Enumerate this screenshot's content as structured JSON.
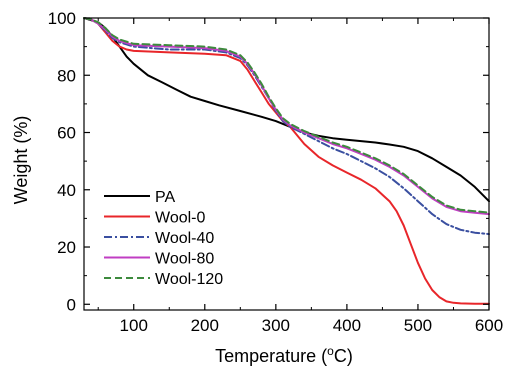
{
  "chart_data": {
    "type": "line",
    "title": "",
    "xlabel": "Temperature (",
    "xlabel_sup": "o",
    "xlabel_end": "C)",
    "ylabel": "Weight (%)",
    "xlim": [
      30,
      600
    ],
    "ylim": [
      -2,
      100
    ],
    "xticks": [
      100,
      200,
      300,
      400,
      500,
      600
    ],
    "yticks": [
      0,
      20,
      40,
      60,
      80,
      100
    ],
    "grid": false,
    "legend_position": "bottom-left",
    "series": [
      {
        "name": "PA",
        "color": "#000000",
        "dash": "solid",
        "x": [
          30,
          50,
          60,
          70,
          80,
          90,
          100,
          120,
          140,
          160,
          180,
          200,
          220,
          250,
          280,
          300,
          320,
          340,
          360,
          380,
          400,
          420,
          440,
          460,
          480,
          500,
          520,
          540,
          560,
          580,
          600
        ],
        "y": [
          100,
          98.5,
          96.5,
          93.5,
          90,
          86.5,
          84,
          80,
          77.5,
          75,
          72.5,
          71,
          69.5,
          67.5,
          65.5,
          64,
          62,
          60,
          58.8,
          58,
          57.5,
          57,
          56.5,
          55.8,
          55,
          53.5,
          51,
          48,
          45,
          41,
          36
        ]
      },
      {
        "name": "Wool-0",
        "color": "#e8262a",
        "dash": "solid",
        "x": [
          30,
          40,
          50,
          60,
          70,
          80,
          90,
          100,
          150,
          200,
          230,
          250,
          260,
          270,
          280,
          290,
          300,
          310,
          320,
          340,
          360,
          380,
          400,
          420,
          440,
          460,
          470,
          480,
          490,
          500,
          510,
          520,
          530,
          540,
          550,
          560,
          580,
          600
        ],
        "y": [
          100,
          99.5,
          98,
          95,
          92,
          90,
          89,
          88.5,
          88,
          87.5,
          87,
          85,
          82,
          78,
          74,
          70,
          67,
          64,
          62,
          56,
          51.5,
          48.5,
          46,
          43.5,
          40.5,
          36,
          32.5,
          27.5,
          21,
          14.5,
          9,
          5,
          2.5,
          1,
          0.5,
          0.3,
          0.2,
          0.2
        ]
      },
      {
        "name": "Wool-40",
        "color": "#3a4fa0",
        "dash": "dashdot",
        "x": [
          30,
          40,
          50,
          60,
          70,
          80,
          100,
          150,
          200,
          230,
          250,
          260,
          270,
          280,
          290,
          300,
          310,
          320,
          340,
          360,
          380,
          400,
          420,
          440,
          460,
          480,
          500,
          520,
          540,
          560,
          580,
          600
        ],
        "y": [
          100,
          99.5,
          98,
          95.5,
          93,
          91.5,
          90,
          89,
          89,
          88,
          86,
          83.5,
          80,
          76,
          72,
          67.5,
          64,
          62,
          59.5,
          57,
          54.5,
          52.5,
          50,
          47.5,
          44.5,
          40.5,
          36,
          31.5,
          28,
          26,
          25,
          24.5
        ]
      },
      {
        "name": "Wool-80",
        "color": "#c03ec3",
        "dash": "solid",
        "x": [
          30,
          40,
          50,
          60,
          70,
          80,
          100,
          150,
          200,
          230,
          250,
          260,
          270,
          280,
          290,
          300,
          310,
          320,
          340,
          360,
          380,
          400,
          420,
          440,
          460,
          480,
          500,
          520,
          540,
          560,
          580,
          600
        ],
        "y": [
          100,
          99.5,
          98,
          96,
          93.5,
          92,
          90.5,
          90,
          89.5,
          88.5,
          86.5,
          84,
          80.5,
          76.5,
          72,
          68,
          64.5,
          62.5,
          60,
          58,
          56,
          54.5,
          52.5,
          50.5,
          48,
          45,
          41,
          37,
          34,
          32.5,
          32,
          31.5
        ]
      },
      {
        "name": "Wool-120",
        "color": "#3d8a3d",
        "dash": "dashed",
        "x": [
          30,
          40,
          50,
          60,
          70,
          80,
          100,
          150,
          200,
          230,
          250,
          260,
          270,
          280,
          290,
          300,
          310,
          320,
          340,
          360,
          380,
          400,
          420,
          440,
          460,
          480,
          500,
          520,
          540,
          560,
          580,
          600
        ],
        "y": [
          100,
          99.5,
          98.5,
          96.5,
          94,
          92.5,
          91,
          90.5,
          90,
          89,
          87,
          84.5,
          81,
          77,
          72.5,
          68.5,
          65,
          63,
          60.5,
          58.5,
          56.5,
          55,
          53,
          51,
          48.5,
          45.5,
          41.5,
          37.5,
          34.5,
          33,
          32.5,
          32
        ]
      }
    ]
  }
}
